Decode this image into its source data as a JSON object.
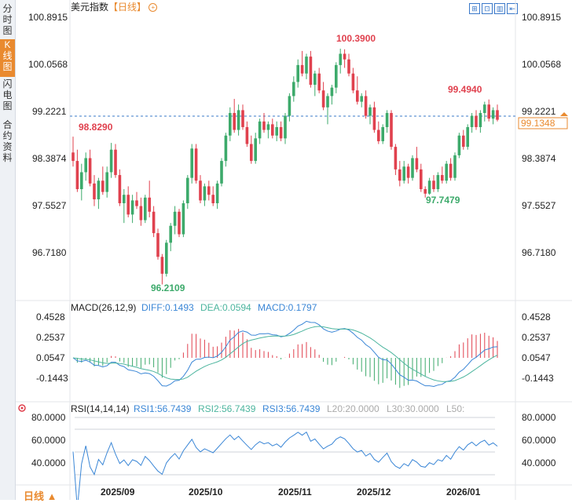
{
  "side_tabs": [
    {
      "label": "分时图",
      "active": false
    },
    {
      "label": "K线图",
      "active": true
    },
    {
      "label": "闪电图",
      "active": false
    },
    {
      "label": "合约资料",
      "active": false
    }
  ],
  "header": {
    "title": "美元指数",
    "period": "【日线】",
    "plus": "+"
  },
  "toolbar_icons": [
    "fit-icon",
    "zoom-icon",
    "chart-mode-icon",
    "exit-icon"
  ],
  "price_axis": {
    "ticks": [
      "100.8915",
      "100.0568",
      "99.2221",
      "98.3874",
      "97.5527",
      "96.7180"
    ],
    "current_price": "99.1348",
    "current_color": "#e98a2f"
  },
  "price_labels": {
    "high": "100.3900",
    "low": "96.2109",
    "left_high": "98.8290",
    "right_high": "99.4940",
    "dec_low": "97.7479"
  },
  "x_axis": {
    "labels": [
      "2025/09",
      "2025/10",
      "2025/11",
      "2025/12",
      "2026/01"
    ]
  },
  "macd": {
    "title": "MACD(26,12,9)",
    "diff": "DIFF:0.1493",
    "dea": "DEA:0.0594",
    "macd": "MACD:0.1797",
    "ticks": [
      "0.4528",
      "0.2537",
      "0.0547",
      "-0.1443"
    ]
  },
  "rsi": {
    "title": "RSI(14,14,14)",
    "rsi1": "RSI1:56.7439",
    "rsi2": "RSI2:56.7439",
    "rsi3": "RSI3:56.7439",
    "l20": "L20:20.0000",
    "l30": "L30:30.0000",
    "l50": "L50:",
    "ticks": [
      "80.0000",
      "60.0000",
      "40.0000"
    ]
  },
  "footer": {
    "label": "日线 ▲"
  },
  "colors": {
    "up": "#3daa6b",
    "down": "#e0414e",
    "diff": "#3a86d6",
    "dea": "#4cb59e",
    "rsi": "#3a86d6"
  },
  "chart_data": {
    "type": "candlestick",
    "title": "美元指数 日线",
    "ylim": [
      96.0,
      101.0
    ],
    "candles": [
      [
        98.55,
        98.83,
        98.3,
        98.4
      ],
      [
        98.4,
        98.6,
        97.85,
        97.9
      ],
      [
        97.9,
        98.35,
        97.7,
        98.2
      ],
      [
        98.2,
        98.55,
        98.05,
        98.45
      ],
      [
        98.45,
        98.6,
        97.95,
        98.0
      ],
      [
        98.0,
        98.15,
        97.6,
        97.72
      ],
      [
        97.72,
        98.1,
        97.55,
        98.05
      ],
      [
        98.05,
        98.3,
        97.8,
        97.85
      ],
      [
        97.85,
        98.3,
        97.75,
        98.2
      ],
      [
        98.2,
        98.72,
        98.1,
        98.6
      ],
      [
        98.6,
        98.7,
        98.1,
        98.15
      ],
      [
        98.15,
        98.25,
        97.6,
        97.65
      ],
      [
        97.65,
        97.9,
        97.3,
        97.8
      ],
      [
        97.8,
        97.95,
        97.4,
        97.45
      ],
      [
        97.45,
        97.8,
        97.3,
        97.7
      ],
      [
        97.7,
        97.85,
        97.55,
        97.6
      ],
      [
        97.6,
        97.75,
        97.25,
        97.35
      ],
      [
        97.35,
        97.8,
        97.3,
        97.75
      ],
      [
        97.75,
        98.05,
        97.4,
        97.5
      ],
      [
        97.5,
        97.6,
        97.05,
        97.12
      ],
      [
        97.12,
        97.2,
        96.65,
        96.7
      ],
      [
        96.7,
        96.75,
        96.21,
        96.4
      ],
      [
        96.4,
        97.0,
        96.35,
        96.95
      ],
      [
        96.95,
        97.3,
        96.8,
        97.25
      ],
      [
        97.25,
        97.6,
        97.1,
        97.5
      ],
      [
        97.5,
        97.55,
        97.05,
        97.1
      ],
      [
        97.1,
        97.7,
        97.05,
        97.65
      ],
      [
        97.65,
        98.15,
        97.55,
        98.1
      ],
      [
        98.1,
        98.7,
        98.0,
        98.62
      ],
      [
        98.62,
        98.7,
        98.0,
        98.05
      ],
      [
        98.05,
        98.15,
        97.65,
        97.7
      ],
      [
        97.7,
        98.0,
        97.6,
        97.95
      ],
      [
        97.95,
        98.05,
        97.7,
        97.8
      ],
      [
        97.8,
        97.95,
        97.6,
        97.65
      ],
      [
        97.65,
        98.05,
        97.55,
        98.0
      ],
      [
        98.0,
        98.45,
        97.95,
        98.4
      ],
      [
        98.4,
        98.9,
        98.3,
        98.85
      ],
      [
        98.85,
        99.35,
        98.75,
        99.25
      ],
      [
        99.25,
        99.5,
        98.9,
        98.95
      ],
      [
        98.95,
        99.4,
        98.85,
        99.3
      ],
      [
        99.3,
        99.4,
        98.95,
        99.0
      ],
      [
        99.0,
        99.1,
        98.65,
        98.7
      ],
      [
        98.7,
        98.85,
        98.35,
        98.4
      ],
      [
        98.4,
        98.9,
        98.35,
        98.8
      ],
      [
        98.8,
        99.15,
        98.7,
        99.1
      ],
      [
        99.1,
        99.25,
        98.9,
        98.95
      ],
      [
        98.95,
        99.1,
        98.8,
        99.05
      ],
      [
        99.05,
        99.15,
        98.8,
        98.85
      ],
      [
        98.85,
        99.1,
        98.75,
        99.0
      ],
      [
        99.0,
        99.1,
        98.75,
        98.8
      ],
      [
        98.8,
        99.25,
        98.7,
        99.2
      ],
      [
        99.2,
        99.6,
        99.1,
        99.55
      ],
      [
        99.55,
        99.9,
        99.45,
        99.8
      ],
      [
        99.8,
        100.2,
        99.7,
        100.1
      ],
      [
        100.1,
        100.35,
        99.9,
        99.95
      ],
      [
        99.95,
        100.3,
        99.85,
        100.25
      ],
      [
        100.25,
        100.35,
        99.7,
        99.75
      ],
      [
        99.75,
        100.0,
        99.55,
        99.95
      ],
      [
        99.95,
        100.05,
        99.6,
        99.65
      ],
      [
        99.65,
        99.8,
        99.3,
        99.35
      ],
      [
        99.35,
        99.6,
        99.05,
        99.55
      ],
      [
        99.55,
        99.75,
        99.4,
        99.7
      ],
      [
        99.7,
        100.15,
        99.6,
        100.1
      ],
      [
        100.1,
        100.39,
        99.95,
        100.3
      ],
      [
        100.3,
        100.38,
        100.05,
        100.2
      ],
      [
        100.2,
        100.3,
        99.9,
        99.95
      ],
      [
        99.95,
        100.05,
        99.6,
        99.65
      ],
      [
        99.65,
        99.9,
        99.4,
        99.45
      ],
      [
        99.45,
        99.6,
        99.35,
        99.55
      ],
      [
        99.55,
        99.65,
        99.15,
        99.2
      ],
      [
        99.2,
        99.4,
        99.05,
        99.35
      ],
      [
        99.35,
        99.45,
        98.9,
        98.95
      ],
      [
        98.95,
        99.1,
        98.7,
        98.75
      ],
      [
        98.75,
        99.05,
        98.7,
        99.0
      ],
      [
        99.0,
        99.3,
        98.9,
        99.25
      ],
      [
        99.25,
        99.3,
        98.6,
        98.65
      ],
      [
        98.65,
        98.7,
        98.15,
        98.25
      ],
      [
        98.25,
        98.4,
        97.95,
        98.05
      ],
      [
        98.05,
        98.4,
        98.0,
        98.3
      ],
      [
        98.3,
        98.35,
        98.0,
        98.1
      ],
      [
        98.1,
        98.5,
        98.05,
        98.45
      ],
      [
        98.45,
        98.65,
        98.2,
        98.25
      ],
      [
        98.25,
        98.35,
        97.85,
        97.9
      ],
      [
        97.9,
        97.95,
        97.75,
        97.82
      ],
      [
        97.82,
        98.1,
        97.8,
        98.05
      ],
      [
        98.05,
        98.15,
        97.85,
        97.9
      ],
      [
        97.9,
        98.2,
        97.85,
        98.15
      ],
      [
        98.15,
        98.3,
        98.0,
        98.05
      ],
      [
        98.05,
        98.4,
        98.0,
        98.35
      ],
      [
        98.35,
        98.45,
        98.05,
        98.1
      ],
      [
        98.1,
        98.55,
        98.05,
        98.5
      ],
      [
        98.5,
        98.9,
        98.45,
        98.85
      ],
      [
        98.85,
        98.95,
        98.6,
        98.65
      ],
      [
        98.65,
        99.05,
        98.6,
        99.0
      ],
      [
        99.0,
        99.25,
        98.9,
        99.2
      ],
      [
        99.2,
        99.3,
        98.95,
        99.0
      ],
      [
        99.0,
        99.3,
        98.9,
        99.25
      ],
      [
        99.25,
        99.45,
        99.1,
        99.4
      ],
      [
        99.4,
        99.49,
        99.1,
        99.15
      ],
      [
        99.15,
        99.35,
        99.05,
        99.3
      ],
      [
        99.3,
        99.4,
        99.1,
        99.13
      ]
    ]
  }
}
